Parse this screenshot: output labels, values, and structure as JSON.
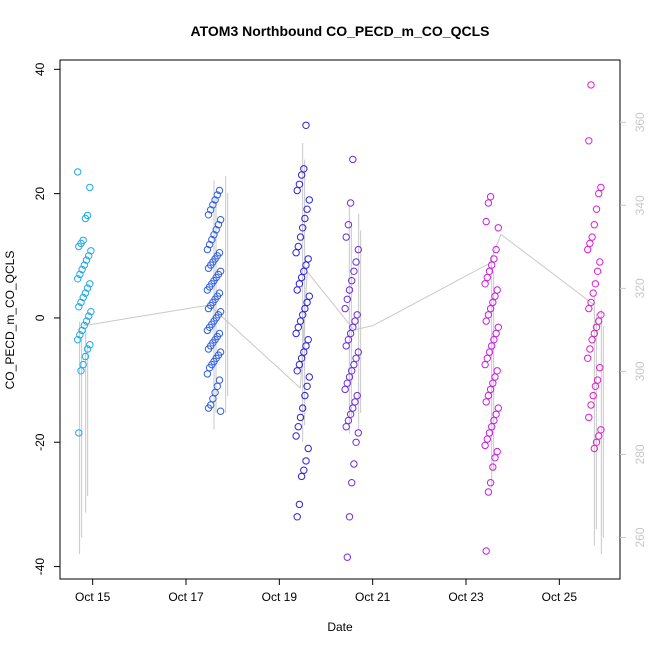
{
  "chart_data": {
    "type": "scatter",
    "title": "ATOM3 Northbound CO_PECD_m_CO_QCLS",
    "xlabel": "Date",
    "ylabel": "CO_PECD_m_CO_QCLS",
    "x_ticks": [
      "Oct 15",
      "Oct 17",
      "Oct 19",
      "Oct 21",
      "Oct 23",
      "Oct 25"
    ],
    "x_tick_days": [
      15,
      17,
      19,
      21,
      23,
      25
    ],
    "xlim_days": [
      14.3,
      26.3
    ],
    "ylim": [
      -40,
      40
    ],
    "y_ticks": [
      -40,
      -20,
      0,
      20,
      40
    ],
    "secondary_ylim": [
      250,
      375
    ],
    "secondary_y_ticks": [
      260,
      280,
      300,
      320,
      340,
      360
    ],
    "grid": false,
    "legend": "none",
    "series": [
      {
        "date_day": 14.82,
        "spread": [
          -18,
          23
        ],
        "color": "#1fa9e6",
        "points": [
          23.5,
          21,
          16.5,
          16,
          12.5,
          12,
          11.5,
          10.8,
          10,
          9.3,
          8.5,
          7.8,
          7,
          6.3,
          5.5,
          4.8,
          4,
          3.3,
          2.5,
          1.8,
          1,
          0.3,
          -0.5,
          -1.2,
          -2,
          -2.7,
          -3.5,
          -4.3,
          -5,
          -6.2,
          -7.5,
          -8.5,
          -18.5
        ]
      },
      {
        "date_day": 17.6,
        "spread": [
          -15,
          21
        ],
        "color": "#2f5fe0",
        "points": [
          20.5,
          19.8,
          19,
          18.2,
          17.4,
          16.6,
          15.8,
          15,
          14.2,
          13.4,
          12.6,
          11.8,
          11,
          10.5,
          10,
          9.5,
          9,
          8.5,
          8,
          7.5,
          7,
          6.5,
          6,
          5.5,
          5,
          4.5,
          4,
          3.5,
          3,
          2.5,
          2,
          1.5,
          1,
          0.5,
          0,
          -0.5,
          -1,
          -1.5,
          -2,
          -2.5,
          -3,
          -3.5,
          -4,
          -4.5,
          -5,
          -5.5,
          -6,
          -6.5,
          -7,
          -7.5,
          -8,
          -9,
          -10,
          -11,
          -12,
          -13,
          -14,
          -14.5,
          -15
        ]
      },
      {
        "date_day": 19.5,
        "spread": [
          -32,
          31
        ],
        "color": "#2e22e0",
        "points": [
          31,
          24,
          23,
          21.5,
          20.5,
          19,
          17.5,
          16,
          14.5,
          13,
          11.5,
          10.5,
          9.5,
          8.5,
          7.5,
          6.5,
          5.5,
          4.5,
          3.5,
          2.5,
          1.5,
          0.5,
          -0.5,
          -1.5,
          -2.5,
          -3.5,
          -4.5,
          -5.5,
          -6.5,
          -7.5,
          -8.5,
          -9.5,
          -11,
          -12.5,
          -14.5,
          -16,
          -17.5,
          -19,
          -21,
          -23,
          -24.5,
          -25.5,
          -30,
          -32
        ]
      },
      {
        "date_day": 20.55,
        "spread": [
          -39,
          25.5
        ],
        "color": "#6d2ee0",
        "points": [
          25.5,
          18.5,
          15,
          13,
          11,
          9,
          7.5,
          6,
          4.5,
          3,
          1.5,
          0.5,
          -0.5,
          -1.5,
          -2.5,
          -3.5,
          -4.5,
          -5.5,
          -6.5,
          -7.5,
          -8.5,
          -9.5,
          -10.5,
          -11.5,
          -12.5,
          -13.5,
          -14.5,
          -15.5,
          -16.5,
          -17.5,
          -18.5,
          -20,
          -23.5,
          -26.5,
          -32,
          -38.5
        ]
      },
      {
        "date_day": 23.55,
        "spread": [
          -37.5,
          19.5
        ],
        "color": "#c81ee0",
        "points": [
          19.5,
          18.5,
          15.5,
          14.5,
          11,
          9.5,
          8.5,
          7.5,
          6.5,
          5.5,
          4.5,
          3.5,
          2.5,
          1.5,
          0.5,
          -0.5,
          -1.5,
          -2.5,
          -3.5,
          -4.5,
          -5.5,
          -6.5,
          -7.5,
          -8.5,
          -9.5,
          -10.5,
          -11.5,
          -12.5,
          -13.5,
          -14.5,
          -15.5,
          -16.5,
          -17.5,
          -18.5,
          -19.5,
          -20.5,
          -21.5,
          -22.5,
          -24,
          -26.5,
          -28,
          -37.5
        ]
      },
      {
        "date_day": 25.75,
        "spread": [
          -21,
          37.5
        ],
        "color": "#e01ed2",
        "points": [
          37.5,
          28.5,
          21,
          20,
          17.5,
          15,
          13,
          12,
          11,
          9,
          7.5,
          5.5,
          4,
          2.5,
          1.5,
          0.5,
          -0.5,
          -1.5,
          -2.5,
          -3.5,
          -5,
          -6.5,
          -8,
          -10,
          -11,
          -12.5,
          -14,
          -16,
          -18,
          -19,
          -20,
          -21
        ]
      }
    ],
    "secondary_line": {
      "color": "#c8c8c8",
      "points": [
        [
          14.8,
          311
        ],
        [
          17.5,
          316
        ],
        [
          19.45,
          296
        ],
        [
          19.6,
          324
        ],
        [
          20.6,
          310
        ],
        [
          21,
          311
        ],
        [
          23.5,
          326
        ],
        [
          23.75,
          333
        ],
        [
          25.75,
          316
        ]
      ]
    },
    "secondary_spikes": [
      {
        "date_day": 14.72,
        "range": [
          256,
          312
        ]
      },
      {
        "date_day": 14.85,
        "range": [
          266,
          310
        ]
      },
      {
        "date_day": 17.6,
        "range": [
          286,
          346
        ]
      },
      {
        "date_day": 17.85,
        "range": [
          290,
          347
        ]
      },
      {
        "date_day": 19.5,
        "range": [
          283,
          355
        ]
      },
      {
        "date_day": 20.5,
        "range": [
          285,
          340
        ]
      },
      {
        "date_day": 20.7,
        "range": [
          286,
          338
        ]
      },
      {
        "date_day": 23.55,
        "range": [
          272,
          328
        ]
      },
      {
        "date_day": 25.75,
        "range": [
          258,
          318
        ]
      },
      {
        "date_day": 25.9,
        "range": [
          256,
          315
        ]
      }
    ]
  }
}
